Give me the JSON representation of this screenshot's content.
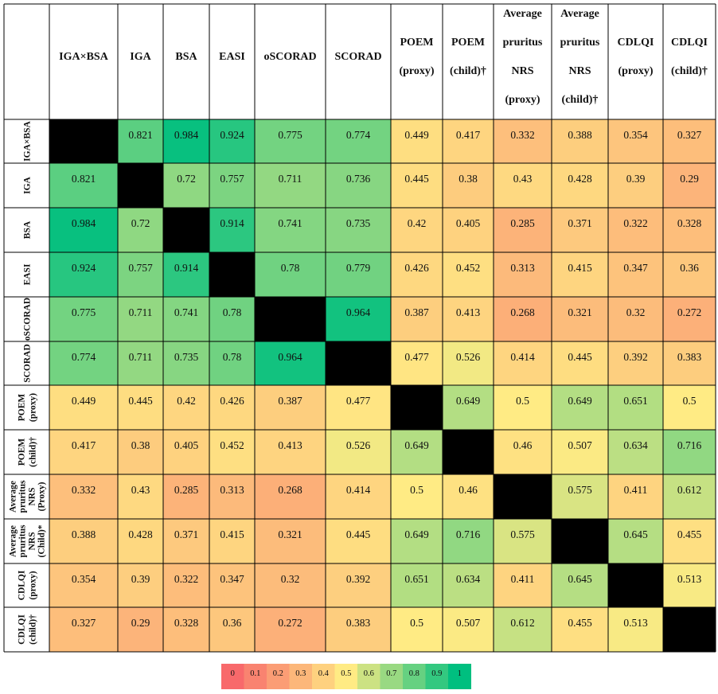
{
  "chart_data": {
    "type": "heatmap",
    "columns": [
      [
        "IGA×BSA"
      ],
      [
        "IGA"
      ],
      [
        "BSA"
      ],
      [
        "EASI"
      ],
      [
        "oSCORAD"
      ],
      [
        "SCORAD"
      ],
      [
        "POEM",
        "(proxy)"
      ],
      [
        "POEM",
        "(child)†"
      ],
      [
        "Average",
        "pruritus",
        "NRS",
        "(proxy)"
      ],
      [
        "Average",
        "pruritus",
        "NRS",
        "(child)†"
      ],
      [
        "CDLQI",
        "(proxy)"
      ],
      [
        "CDLQI",
        "(child)†"
      ]
    ],
    "rows": [
      [
        "IGA×BSA"
      ],
      [
        "IGA"
      ],
      [
        "BSA"
      ],
      [
        "EASI"
      ],
      [
        "oSCORAD"
      ],
      [
        "SCORAD"
      ],
      [
        "POEM",
        "(proxy)"
      ],
      [
        "POEM",
        "(child)†"
      ],
      [
        "Average",
        "pruritus",
        "NRS",
        "(Proxy)"
      ],
      [
        "Average",
        "pruritus",
        "NRS",
        "(Child)*"
      ],
      [
        "CDLQI",
        "(proxy)"
      ],
      [
        "CDLQI",
        "(child)†"
      ]
    ],
    "values": [
      [
        null,
        0.821,
        0.984,
        0.924,
        0.775,
        0.774,
        0.449,
        0.417,
        0.332,
        0.388,
        0.354,
        0.327
      ],
      [
        0.821,
        null,
        0.72,
        0.757,
        0.711,
        0.736,
        0.445,
        0.38,
        0.43,
        0.428,
        0.39,
        0.29
      ],
      [
        0.984,
        0.72,
        null,
        0.914,
        0.741,
        0.735,
        0.42,
        0.405,
        0.285,
        0.371,
        0.322,
        0.328
      ],
      [
        0.924,
        0.757,
        0.914,
        null,
        0.78,
        0.779,
        0.426,
        0.452,
        0.313,
        0.415,
        0.347,
        0.36
      ],
      [
        0.775,
        0.711,
        0.741,
        0.78,
        null,
        0.964,
        0.387,
        0.413,
        0.268,
        0.321,
        0.32,
        0.272
      ],
      [
        0.774,
        0.711,
        0.735,
        0.78,
        0.964,
        null,
        0.477,
        0.526,
        0.414,
        0.445,
        0.392,
        0.383
      ],
      [
        0.449,
        0.445,
        0.42,
        0.426,
        0.387,
        0.477,
        null,
        0.649,
        0.5,
        0.649,
        0.651,
        0.5
      ],
      [
        0.417,
        0.38,
        0.405,
        0.452,
        0.413,
        0.526,
        0.649,
        null,
        0.46,
        0.507,
        0.634,
        0.716
      ],
      [
        0.332,
        0.43,
        0.285,
        0.313,
        0.268,
        0.414,
        0.5,
        0.46,
        null,
        0.575,
        0.411,
        0.612
      ],
      [
        0.388,
        0.428,
        0.371,
        0.415,
        0.321,
        0.445,
        0.649,
        0.716,
        0.575,
        null,
        0.645,
        0.455
      ],
      [
        0.354,
        0.39,
        0.322,
        0.347,
        0.32,
        0.392,
        0.651,
        0.634,
        0.411,
        0.645,
        null,
        0.513
      ],
      [
        0.327,
        0.29,
        0.328,
        0.36,
        0.272,
        0.383,
        0.5,
        0.507,
        0.612,
        0.455,
        0.513,
        null
      ]
    ],
    "diagonal_color": "#000000",
    "legend": {
      "position": "bottom-center",
      "ticks": [
        "0",
        "0.1",
        "0.2",
        "0.3",
        "0.4",
        "0.5",
        "0.6",
        "0.7",
        "0.8",
        "0.9",
        "1"
      ]
    },
    "color_scale": {
      "stops": [
        [
          0.0,
          "#f8696b"
        ],
        [
          0.5,
          "#ffeb84"
        ],
        [
          1.0,
          "#00bf7f"
        ]
      ]
    },
    "zlim": [
      0,
      1
    ]
  }
}
